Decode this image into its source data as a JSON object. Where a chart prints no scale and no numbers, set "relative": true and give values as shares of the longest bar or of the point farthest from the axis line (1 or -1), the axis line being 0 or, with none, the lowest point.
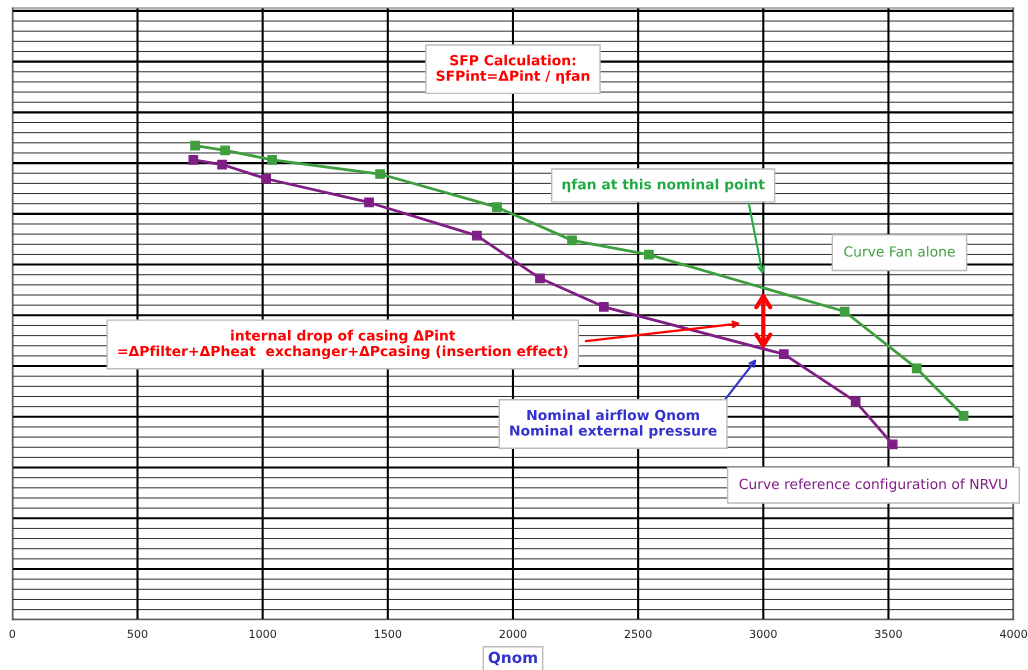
{
  "chart_data": {
    "type": "line",
    "relative": true,
    "xlabel": "Qnom",
    "xlim": [
      0,
      4000
    ],
    "xticks": [
      0,
      500,
      1000,
      1500,
      2000,
      2500,
      3000,
      3500,
      4000
    ],
    "tick_labels": "x",
    "grid": true,
    "marker": "square",
    "line_style": "solid",
    "series": [
      {
        "name": "Curve Fan alone",
        "color": "#3f9f3f",
        "x": [
          730,
          850,
          1038,
          1469,
          1936,
          2236,
          2543,
          3325,
          3613,
          3800
        ],
        "values": [
          1.0,
          0.99,
          0.97,
          0.94,
          0.87,
          0.8,
          0.77,
          0.65,
          0.53,
          0.43
        ]
      },
      {
        "name": "Curve reference configuration of NRVU",
        "color": "#7f1f86",
        "x": [
          723,
          838,
          1014,
          1425,
          1856,
          2108,
          2363,
          3082,
          3369,
          3517
        ],
        "values": [
          0.97,
          0.96,
          0.93,
          0.88,
          0.81,
          0.72,
          0.66,
          0.56,
          0.46,
          0.37
        ]
      }
    ],
    "annotations": [
      "SFP Calculation:\nSFPint=ΔPint / ηfan",
      "ηfan at this nominal point",
      "internal drop of casing ΔPint\n=ΔPfilter+ΔPheat  exchanger+ΔPcasing (insertion effect)",
      "Nominal airflow Qnom\nNominal external pressure"
    ]
  }
}
